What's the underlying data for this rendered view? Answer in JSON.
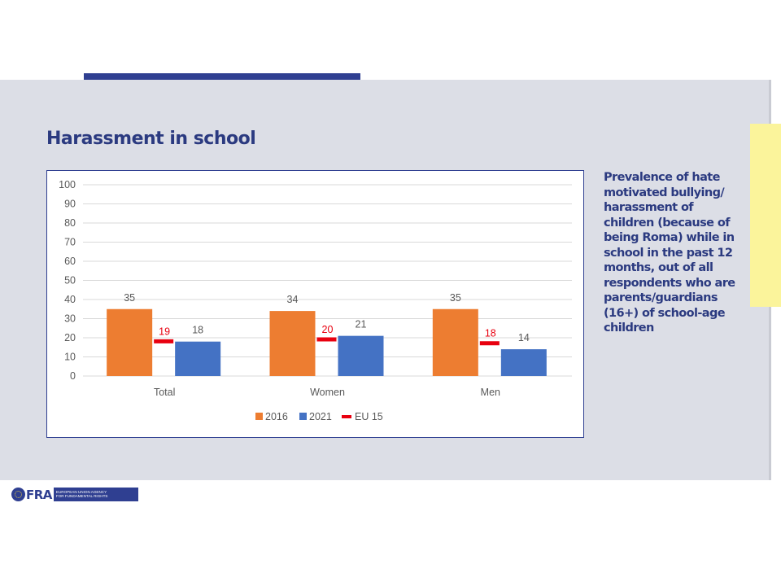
{
  "slide": {
    "title": "Harassment in school",
    "side_text": "Prevalence of hate\nmotivated bullying/\nharassment of\nchildren (because of\nbeing Roma) while in\nschool in the past 12\nmonths, out of all\nrespondents who are\nparents/guardians\n(16+) of school-age\nchildren",
    "logo": {
      "name": "FRA",
      "line1": "EUROPEAN UNION AGENCY",
      "line2": "FOR FUNDAMENTAL RIGHTS"
    }
  },
  "colors": {
    "series_2016": "#ed7d31",
    "series_2021": "#4472c4",
    "eu15": "#e8000f",
    "title": "#2b3a80",
    "panel": "#dcdee6",
    "accent_bar": "#2f3f91",
    "yellow_tab": "#fbf49b"
  },
  "chart_data": {
    "type": "bar",
    "categories": [
      "Total",
      "Women",
      "Men"
    ],
    "series": [
      {
        "name": "2016",
        "values": [
          35,
          34,
          35
        ]
      },
      {
        "name": "2021",
        "values": [
          18,
          21,
          14
        ]
      }
    ],
    "markers": {
      "name": "EU 15",
      "values": [
        19,
        20,
        18
      ]
    },
    "ylim": [
      0,
      100
    ],
    "yticks": [
      0,
      10,
      20,
      30,
      40,
      50,
      60,
      70,
      80,
      90,
      100
    ],
    "grid": true,
    "legend": "bottom"
  }
}
